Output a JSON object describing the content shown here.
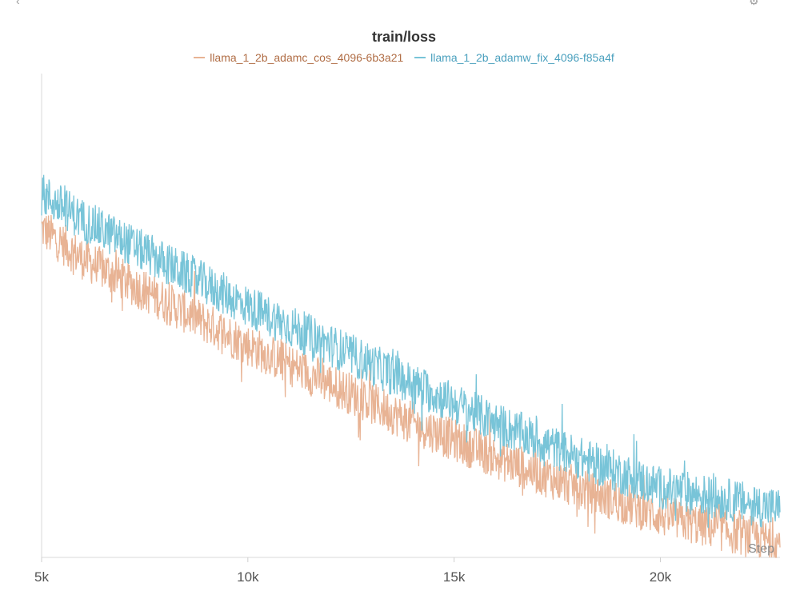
{
  "icons": {
    "left": "chevron-left-icon",
    "right": "gear-icon"
  },
  "chart_data": {
    "type": "line",
    "title": "train/loss",
    "xlabel": "Step",
    "ylabel": "",
    "xlim": [
      5000,
      22900
    ],
    "x_ticks": [
      5000,
      10000,
      15000,
      20000
    ],
    "x_tick_labels": [
      "5k",
      "10k",
      "15k",
      "20k"
    ],
    "y_ticks_shown": false,
    "grid": false,
    "legend_position": "top-center",
    "series": [
      {
        "name": "llama_1_2b_adamc_cos_4096-6b3a21",
        "color": "#e8b394",
        "text_color": "#b06d45",
        "x": [
          5000,
          6000,
          8000,
          10000,
          12000,
          14000,
          16000,
          18000,
          20000,
          22900
        ],
        "y": [
          0.73,
          0.66,
          0.56,
          0.46,
          0.37,
          0.28,
          0.2,
          0.13,
          0.065,
          0.0
        ]
      },
      {
        "name": "llama_1_2b_adamw_fix_4096-f85a4f",
        "color": "#78c4d8",
        "text_color": "#4aa0be",
        "x": [
          5000,
          6000,
          8000,
          10000,
          12000,
          14000,
          16000,
          18000,
          20000,
          22900
        ],
        "y": [
          0.81,
          0.75,
          0.65,
          0.55,
          0.46,
          0.37,
          0.28,
          0.2,
          0.13,
          0.08
        ]
      }
    ]
  }
}
